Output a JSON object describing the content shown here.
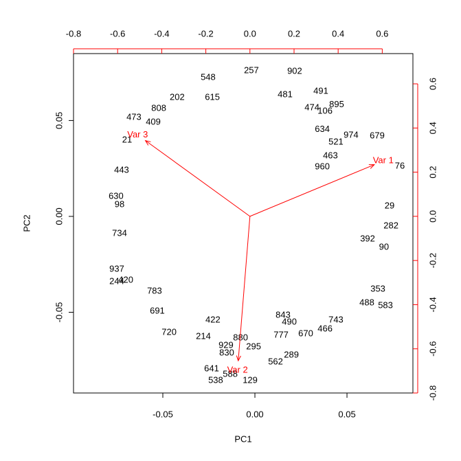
{
  "chart_data": {
    "type": "biplot",
    "xlabel": "PC1",
    "ylabel": "PC2",
    "xlim": [
      -0.0985,
      0.0858
    ],
    "ylim": [
      -0.0921,
      0.0849
    ],
    "xticks": [
      -0.05,
      {
        "value": 0,
        "label": "0.00"
      },
      0.05
    ],
    "yticks": [
      -0.05,
      {
        "value": 0,
        "label": "0.00"
      },
      0.05
    ],
    "x2lim": [
      -0.8,
      0.739
    ],
    "y2lim": [
      -0.8,
      0.737
    ],
    "x2ticks": [
      -0.8,
      -0.6,
      -0.4,
      -0.2,
      {
        "value": 0,
        "label": "0.0"
      },
      0.2,
      0.4,
      0.6
    ],
    "y2ticks": [
      -0.8,
      -0.6,
      -0.4,
      -0.2,
      {
        "value": 0,
        "label": "0.0"
      },
      0.2,
      0.4,
      0.6
    ],
    "point_color": "#000000",
    "points": {
      "labels": [
        "548",
        "257",
        "902",
        "491",
        "202",
        "473",
        "808",
        "679",
        "974",
        "106",
        "734",
        "98",
        "937",
        "244",
        "691",
        "720",
        "214",
        "929",
        "538",
        "129",
        "588",
        "562",
        "289",
        "295",
        "777",
        "670",
        "466",
        "743",
        "490",
        "843",
        "353",
        "488",
        "392",
        "29",
        "76",
        "880",
        "463",
        "960",
        "830",
        "641",
        "422",
        "409",
        "21",
        "443",
        "630",
        "783",
        "420",
        "583",
        "90",
        "282",
        "615",
        "481",
        "895",
        "474",
        "634",
        "521"
      ],
      "x": [
        -0.0254,
        -0.0019,
        0.0216,
        0.0358,
        -0.0422,
        -0.0657,
        -0.0522,
        0.0664,
        0.0522,
        0.0381,
        -0.0735,
        -0.0735,
        -0.075,
        -0.075,
        -0.053,
        -0.0466,
        -0.028,
        -0.0157,
        -0.0213,
        -0.0026,
        -0.0134,
        0.0112,
        0.0198,
        -0.0007,
        0.0142,
        0.0276,
        0.0381,
        0.044,
        0.0187,
        0.0153,
        0.0668,
        0.0608,
        0.0612,
        0.0731,
        0.0787,
        -0.0078,
        0.041,
        0.0366,
        -0.0153,
        -0.0235,
        -0.0228,
        -0.0552,
        -0.0694,
        -0.0724,
        -0.0754,
        -0.0545,
        -0.0701,
        0.0709,
        0.0701,
        0.0739,
        -0.0231,
        0.0164,
        0.0444,
        0.031,
        0.0366,
        0.044
      ],
      "y": [
        0.0724,
        0.076,
        0.0756,
        0.0652,
        0.062,
        0.0516,
        0.0563,
        0.0419,
        0.0423,
        0.0548,
        -0.009,
        0.0061,
        -0.0276,
        -0.0341,
        -0.0495,
        -0.0606,
        -0.0627,
        -0.0674,
        -0.0857,
        -0.0857,
        -0.0824,
        -0.076,
        -0.0724,
        -0.0681,
        -0.062,
        -0.0613,
        -0.0588,
        -0.0541,
        -0.0552,
        -0.0516,
        -0.038,
        -0.0452,
        -0.0118,
        0.0054,
        0.0262,
        -0.0634,
        0.0315,
        0.0258,
        -0.0713,
        -0.0796,
        -0.0541,
        0.0491,
        0.0398,
        0.024,
        0.0104,
        -0.0391,
        -0.0333,
        -0.0466,
        -0.0161,
        -0.005,
        0.062,
        0.0634,
        0.0581,
        0.0566,
        0.0452,
        0.0387
      ]
    },
    "loadings": {
      "color": "#ff0000",
      "names": [
        "Var 1",
        "Var 2",
        "Var 3"
      ],
      "x": [
        0.564,
        -0.053,
        -0.474
      ],
      "y": [
        0.234,
        -0.654,
        0.343
      ]
    }
  }
}
